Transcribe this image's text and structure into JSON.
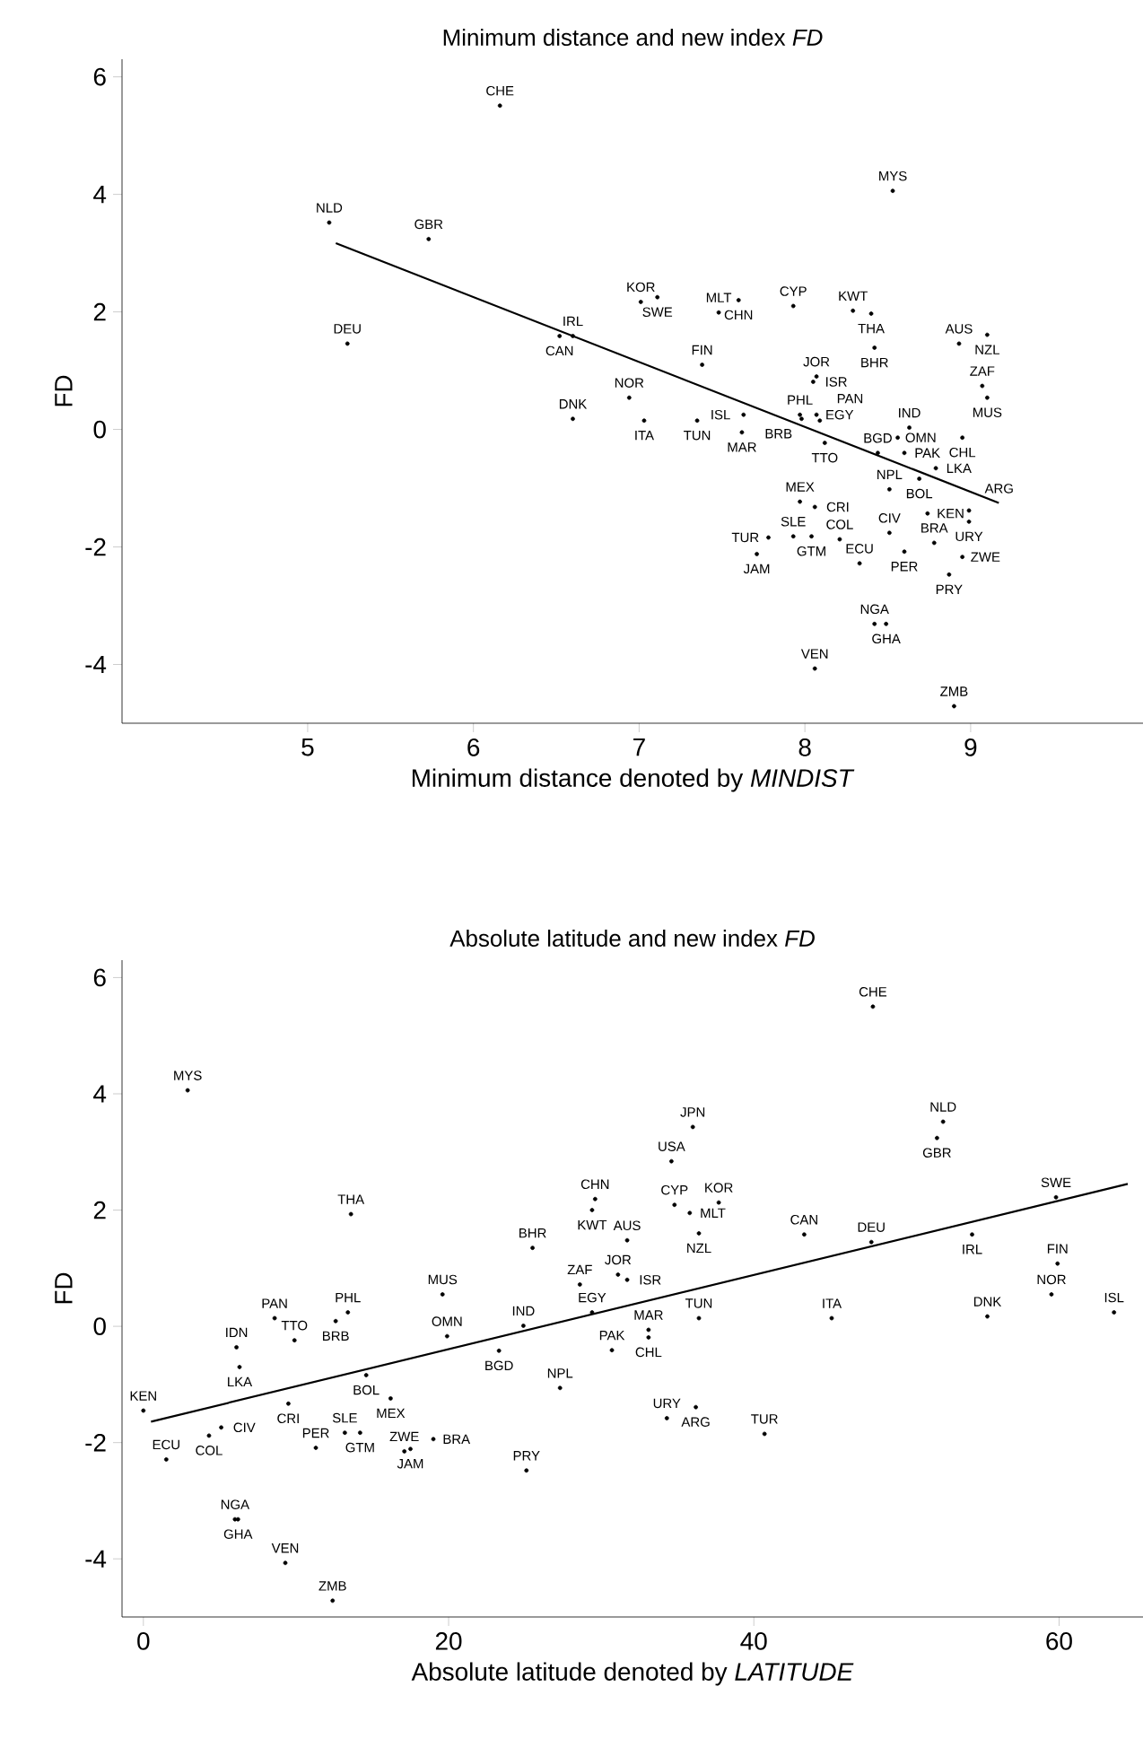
{
  "chart_data": [
    {
      "type": "scatter",
      "title": "Minimum distance and new index *FD*",
      "xlabel": "Minimum distance denoted by *MINDIST*",
      "ylabel": "FD",
      "xlim": [
        3.88,
        10.04
      ],
      "ylim": [
        -5,
        6.3
      ],
      "xticks": [
        5,
        6,
        7,
        8,
        9
      ],
      "yticks": [
        -4,
        -2,
        0,
        2,
        4,
        6
      ],
      "series": [
        {
          "color": "#000000",
          "x": [
            6.16,
            5.13,
            5.73,
            5.24,
            6.52,
            6.6,
            6.6,
            8.53,
            7.01,
            7.11,
            7.48,
            7.6,
            7.93,
            8.29,
            8.4,
            8.42,
            8.93,
            9.1,
            7.38,
            8.07,
            8.05,
            9.07,
            9.1,
            6.94,
            7.03,
            7.35,
            7.63,
            7.62,
            7.97,
            8.07,
            7.98,
            8.09,
            8.12,
            8.63,
            8.56,
            8.95,
            8.44,
            8.6,
            8.79,
            8.69,
            8.51,
            7.97,
            8.06,
            8.74,
            8.99,
            8.99,
            8.51,
            7.78,
            7.93,
            8.04,
            8.21,
            7.71,
            8.33,
            8.6,
            8.78,
            8.95,
            8.87,
            8.42,
            8.49,
            8.06,
            8.9
          ],
          "values": [
            5.51,
            3.52,
            3.24,
            1.46,
            1.59,
            1.59,
            0.18,
            4.06,
            2.17,
            2.25,
            1.99,
            2.2,
            2.1,
            2.02,
            1.97,
            1.39,
            1.46,
            1.61,
            1.1,
            0.9,
            0.81,
            0.74,
            0.54,
            0.54,
            0.15,
            0.15,
            0.25,
            -0.05,
            0.25,
            0.25,
            0.18,
            0.15,
            -0.23,
            0.03,
            -0.14,
            -0.14,
            -0.4,
            -0.4,
            -0.66,
            -0.84,
            -1.02,
            -1.23,
            -1.32,
            -1.43,
            -1.38,
            -1.57,
            -1.76,
            -1.84,
            -1.82,
            -1.82,
            -1.87,
            -2.12,
            -2.28,
            -2.08,
            -1.93,
            -2.17,
            -2.47,
            -3.31,
            -3.31,
            -4.07,
            -4.71
          ],
          "value_labels": [
            "CHE",
            "NLD",
            "GBR",
            "DEU",
            "CAN",
            "IRL",
            "DNK",
            "MYS",
            "KOR",
            "SWE",
            "MLT",
            "CHN",
            "CYP",
            "KWT",
            "THA",
            "BHR",
            "AUS",
            "NZL",
            "FIN",
            "JOR",
            "ISR",
            "ZAF",
            "MUS",
            "NOR",
            "ITA",
            "TUN",
            "ISL",
            "MAR",
            "PHL",
            "EGY",
            "BRB",
            "PAN",
            "TTO",
            "IND",
            "OMN",
            "CHL",
            "BGD",
            "PAK",
            "LKA",
            "BOL",
            "NPL",
            "MEX",
            "CRI",
            "KEN",
            "ARG",
            "URY",
            "CIV",
            "TUR",
            "SLE",
            "GTM",
            "COL",
            "JAM",
            "ECU",
            "PER",
            "BRA",
            "ZWE",
            "PRY",
            "NGA",
            "GHA",
            "VEN",
            "ZMB"
          ]
        },
        {
          "type": "line",
          "color": "#000000",
          "x": [
            5.17,
            9.17
          ],
          "values": [
            3.17,
            -1.25
          ]
        }
      ]
    },
    {
      "type": "scatter",
      "title": "Absolute latitude and new index *FD*",
      "xlabel": "Absolute latitude denoted by *LATITUDE*",
      "ylabel": "FD",
      "xlim": [
        -1.4,
        65.5
      ],
      "ylim": [
        -5,
        6.3
      ],
      "xticks": [
        0,
        20,
        40,
        60
      ],
      "yticks": [
        -4,
        -2,
        0,
        2,
        4,
        6
      ],
      "series": [
        {
          "color": "#000000",
          "x": [
            47.8,
            36.0,
            34.6,
            52.4,
            52.0,
            29.6,
            29.4,
            34.8,
            35.8,
            37.7,
            59.8,
            13.6,
            2.9,
            25.5,
            31.7,
            36.4,
            43.3,
            47.7,
            54.3,
            59.9,
            59.5,
            63.6,
            55.3,
            45.1,
            36.4,
            33.1,
            33.1,
            30.7,
            29.4,
            28.6,
            31.1,
            31.7,
            19.6,
            8.6,
            12.6,
            13.4,
            6.1,
            9.9,
            6.3,
            19.9,
            24.9,
            23.3,
            14.6,
            16.2,
            27.3,
            9.5,
            0,
            5.1,
            4.3,
            1.5,
            11.3,
            13.2,
            14.2,
            17.1,
            17.5,
            19.0,
            25.1,
            34.3,
            36.2,
            40.7,
            6.0,
            6.2,
            9.3,
            12.4
          ],
          "values": [
            5.5,
            3.43,
            2.84,
            3.52,
            3.24,
            2.19,
            2.0,
            2.09,
            1.95,
            2.13,
            2.22,
            1.93,
            4.06,
            1.35,
            1.48,
            1.6,
            1.58,
            1.45,
            1.58,
            1.08,
            0.55,
            0.24,
            0.17,
            0.14,
            0.14,
            -0.06,
            -0.19,
            -0.41,
            0.24,
            0.72,
            0.89,
            0.8,
            0.55,
            0.14,
            0.09,
            0.24,
            -0.36,
            -0.24,
            -0.7,
            -0.17,
            0.01,
            -0.42,
            -0.84,
            -1.24,
            -1.06,
            -1.33,
            -1.45,
            -1.74,
            -1.88,
            -2.29,
            -2.09,
            -1.83,
            -1.83,
            -2.15,
            -2.11,
            -1.94,
            -2.48,
            -1.58,
            -1.39,
            -1.85,
            -3.32,
            -3.32,
            -4.07,
            -4.72
          ],
          "value_labels": [
            "CHE",
            "JPN",
            "USA",
            "NLD",
            "GBR",
            "CHN",
            "KWT",
            "CYP",
            "MLT",
            "KOR",
            "SWE",
            "THA",
            "MYS",
            "BHR",
            "AUS",
            "NZL",
            "CAN",
            "DEU",
            "IRL",
            "FIN",
            "NOR",
            "ISL",
            "DNK",
            "ITA",
            "TUN",
            "MAR",
            "CHL",
            "PAK",
            "EGY",
            "ZAF",
            "JOR",
            "ISR",
            "MUS",
            "PAN",
            "BRB",
            "PHL",
            "IDN",
            "TTO",
            "LKA",
            "OMN",
            "IND",
            "BGD",
            "BOL",
            "MEX",
            "NPL",
            "CRI",
            "KEN",
            "CIV",
            "COL",
            "ECU",
            "PER",
            "SLE",
            "GTM",
            "ZWE",
            "JAM",
            "BRA",
            "PRY",
            "URY",
            "ARG",
            "TUR",
            "NGA",
            "GHA",
            "VEN",
            "ZMB"
          ]
        },
        {
          "type": "line",
          "color": "#000000",
          "x": [
            0.5,
            64.5
          ],
          "values": [
            -1.64,
            2.45
          ]
        }
      ]
    }
  ]
}
